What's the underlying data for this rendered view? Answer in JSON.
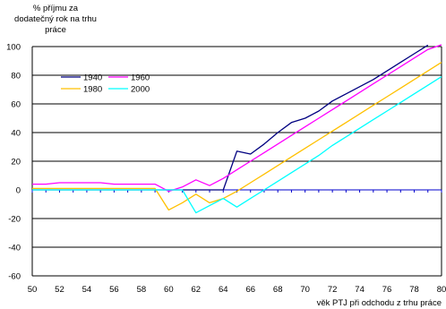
{
  "chart_data": {
    "type": "line",
    "title": "",
    "ylabel": "% příjmu za dodatečný rok na trhu práce",
    "ylabel_lines": [
      "% příjmu za",
      "dodatečný rok na trhu",
      "práce"
    ],
    "xlabel": "věk PTJ při odchodu z trhu práce",
    "xlim": [
      50,
      80
    ],
    "ylim": [
      -60,
      100
    ],
    "x_ticks": [
      50,
      52,
      54,
      56,
      58,
      60,
      62,
      64,
      66,
      68,
      70,
      72,
      74,
      76,
      78,
      80
    ],
    "y_ticks": [
      -60,
      -40,
      -20,
      0,
      20,
      40,
      60,
      80,
      100
    ],
    "y_tick_labels": [
      "-60",
      "-40",
      "-20",
      "0",
      "20",
      "40",
      "60",
      "80",
      "100"
    ],
    "grid": "horizontal",
    "legend_position": "top-left",
    "x": [
      50,
      51,
      52,
      53,
      54,
      55,
      56,
      57,
      58,
      59,
      60,
      61,
      62,
      63,
      64,
      65,
      66,
      67,
      68,
      69,
      70,
      71,
      72,
      73,
      74,
      75,
      76,
      77,
      78,
      79,
      80
    ],
    "series": [
      {
        "name": "1940",
        "color": "#000080",
        "values": [
          0,
          0,
          0,
          0,
          0,
          0,
          0,
          0,
          0,
          0,
          0,
          0,
          0,
          0,
          0,
          27,
          25,
          32,
          40,
          47,
          50,
          55,
          62,
          67,
          72,
          77,
          83,
          89,
          95,
          101,
          null
        ]
      },
      {
        "name": "1960",
        "color": "#ff00ff",
        "values": [
          4,
          4,
          5,
          5,
          5,
          5,
          4,
          4,
          4,
          4,
          -1,
          2,
          7,
          3,
          8,
          14,
          20,
          26,
          32,
          38,
          44,
          50,
          56,
          62,
          68,
          74,
          80,
          86,
          92,
          98,
          103
        ]
      },
      {
        "name": "1980",
        "color": "#ffc000",
        "values": [
          1,
          1,
          1,
          1,
          1,
          1,
          1,
          1,
          1,
          1,
          -14,
          -9,
          -3,
          -9,
          -6,
          -1,
          5,
          11,
          17,
          23,
          29,
          35,
          41,
          47,
          53,
          59,
          65,
          71,
          77,
          83,
          89
        ]
      },
      {
        "name": "2000",
        "color": "#00ffff",
        "values": [
          0,
          0,
          0,
          0,
          0,
          0,
          0,
          0,
          0,
          0,
          0,
          0,
          -16,
          -11,
          -6,
          -12,
          -6,
          0,
          6,
          12,
          18,
          24,
          31,
          37,
          43,
          49,
          55,
          61,
          67,
          73,
          79
        ]
      }
    ]
  }
}
